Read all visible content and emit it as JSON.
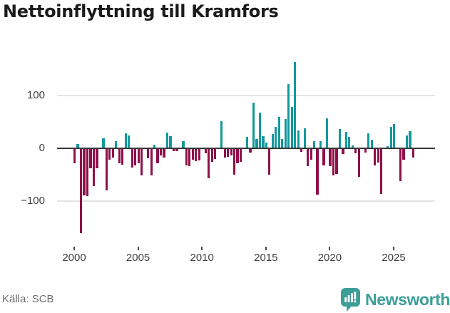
{
  "page": {
    "title": "Nettoinflyttning till Kramfors",
    "source": "Källa: SCB",
    "branding": {
      "wordmark": "Newsworthy",
      "logo_icon": "newsworthy-speech-bubble-bar-chart",
      "brand_color": "#3C9E97"
    }
  },
  "chart_data": {
    "type": "bar",
    "title": "Nettoinflyttning till Kramfors",
    "x_period": "quarterly, 2000 to 2025",
    "x_tick_labels": [
      "2000",
      "2005",
      "2010",
      "2015",
      "2020",
      "2025"
    ],
    "x_tick_bar_indices": [
      0,
      20,
      40,
      60,
      80,
      100
    ],
    "y_tick_labels": [
      "100",
      "0",
      "−100"
    ],
    "y_tick_values": [
      100,
      0,
      -100
    ],
    "ylim": [
      -175,
      180
    ],
    "grid": "horizontal",
    "legend": "none",
    "positive_color": "#13989D",
    "negative_color": "#8F1049",
    "values": [
      -28,
      8,
      -161,
      -89,
      -90,
      -38,
      -72,
      -38,
      0,
      19,
      -80,
      -22,
      -17,
      13,
      -29,
      -31,
      29,
      25,
      -37,
      -32,
      -29,
      -52,
      0,
      -19,
      -52,
      7,
      -28,
      -13,
      -17,
      30,
      23,
      -5,
      -5,
      0,
      14,
      -32,
      -34,
      -22,
      -24,
      -23,
      0,
      -10,
      -57,
      -25,
      -20,
      0,
      51,
      -18,
      -16,
      -13,
      -50,
      -28,
      -25,
      0,
      21,
      -8,
      86,
      18,
      68,
      23,
      11,
      -50,
      27,
      41,
      59,
      18,
      55,
      122,
      79,
      163,
      34,
      -7,
      38,
      -34,
      -22,
      13,
      -88,
      13,
      -32,
      57,
      -34,
      -52,
      -48,
      37,
      -11,
      31,
      21,
      6,
      -9,
      -54,
      0,
      -8,
      28,
      16,
      -32,
      -27,
      -86,
      0,
      4,
      40,
      46,
      0,
      -62,
      -21,
      24,
      32,
      -17
    ]
  },
  "colors": {
    "background": "#FFFFFF",
    "title_text": "#1B1B1B",
    "axis_text": "#3E3E3E",
    "gridline": "#E4E4E4",
    "zero_line": "#383838",
    "source_text": "#6E6E6E"
  }
}
